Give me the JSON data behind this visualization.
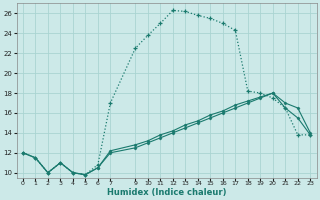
{
  "xlabel": "Humidex (Indice chaleur)",
  "ylabel": "",
  "background_color": "#cce9e8",
  "grid_color": "#aad4d2",
  "line_color": "#1a7a6e",
  "xlim": [
    -0.5,
    23.5
  ],
  "ylim": [
    9.5,
    27
  ],
  "xticks": [
    0,
    1,
    2,
    3,
    4,
    5,
    6,
    7,
    9,
    10,
    11,
    12,
    13,
    14,
    15,
    16,
    17,
    18,
    19,
    20,
    21,
    22,
    23
  ],
  "yticks": [
    10,
    12,
    14,
    16,
    18,
    20,
    22,
    24,
    26
  ],
  "series1_x": [
    0,
    1,
    2,
    3,
    4,
    5,
    6,
    7,
    9,
    10,
    11,
    12,
    13,
    14,
    15,
    16,
    17,
    18,
    19,
    20,
    21,
    22,
    23
  ],
  "series1_y": [
    12,
    11.5,
    10,
    11,
    10,
    9.8,
    10.8,
    17,
    22.5,
    23.8,
    25,
    26.3,
    26.2,
    25.8,
    25.5,
    25,
    24.3,
    18.2,
    18,
    17.5,
    16.5,
    13.8,
    13.8
  ],
  "series2_x": [
    0,
    1,
    2,
    3,
    4,
    5,
    6,
    7,
    9,
    10,
    11,
    12,
    13,
    14,
    15,
    16,
    17,
    18,
    19,
    20,
    21,
    22,
    23
  ],
  "series2_y": [
    12,
    11.5,
    10,
    11,
    10,
    9.8,
    10.5,
    12,
    12.5,
    13,
    13.5,
    14,
    14.5,
    15,
    15.5,
    16,
    16.5,
    17,
    17.5,
    18,
    16.5,
    15.5,
    13.8
  ],
  "series3_x": [
    0,
    1,
    2,
    3,
    4,
    5,
    6,
    7,
    9,
    10,
    11,
    12,
    13,
    14,
    15,
    16,
    17,
    18,
    19,
    20,
    21,
    22,
    23
  ],
  "series3_y": [
    12,
    11.5,
    10,
    11,
    10,
    9.8,
    10.5,
    12.2,
    12.8,
    13.2,
    13.8,
    14.2,
    14.8,
    15.2,
    15.8,
    16.2,
    16.8,
    17.2,
    17.6,
    18.0,
    17.0,
    16.5,
    14.0
  ]
}
